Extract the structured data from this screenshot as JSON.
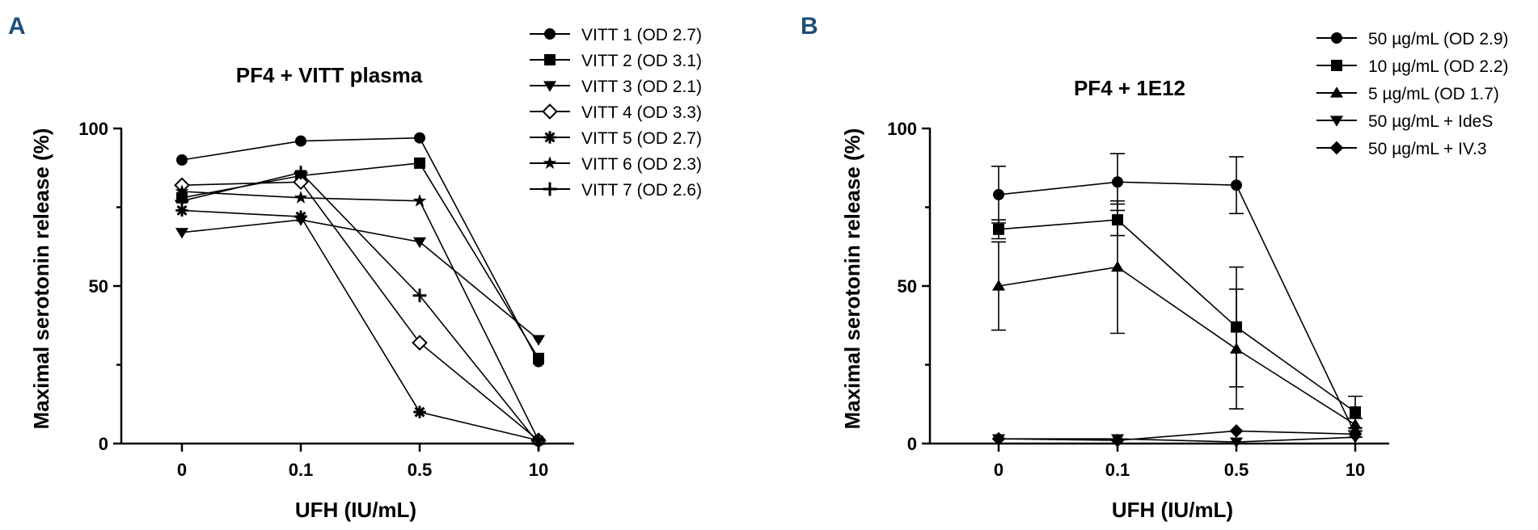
{
  "colors": {
    "ink": "#000000",
    "panel_letter": "#1f4e79",
    "background": "#ffffff"
  },
  "chart_data": [
    {
      "panel": "A",
      "type": "line",
      "title": "PF4 + VITT plasma",
      "xlabel": "UFH (IU/mL)",
      "ylabel": "Maximal serotonin release (%)",
      "categories": [
        "0",
        "0.1",
        "0.5",
        "10"
      ],
      "ylim": [
        0,
        100
      ],
      "yticks": [
        "0",
        "50",
        "100"
      ],
      "legend_position": "top-right",
      "series": [
        {
          "name": "VITT 1 (OD 2.7)",
          "marker": "circle",
          "values": [
            90,
            96,
            97,
            26
          ]
        },
        {
          "name": "VITT 2 (OD 3.1)",
          "marker": "square",
          "values": [
            78,
            85,
            89,
            27
          ]
        },
        {
          "name": "VITT 3 (OD 2.1)",
          "marker": "triangle-down",
          "values": [
            67,
            71,
            64,
            33
          ]
        },
        {
          "name": "VITT 4 (OD 3.3)",
          "marker": "diamond-open",
          "values": [
            82,
            83,
            32,
            1
          ]
        },
        {
          "name": "VITT 5 (OD 2.7)",
          "marker": "asterisk",
          "values": [
            74,
            72,
            10,
            1
          ]
        },
        {
          "name": "VITT 6 (OD 2.3)",
          "marker": "star",
          "values": [
            80,
            78,
            77,
            1
          ]
        },
        {
          "name": "VITT 7 (OD 2.6)",
          "marker": "plus",
          "values": [
            77,
            86,
            47,
            0
          ]
        }
      ]
    },
    {
      "panel": "B",
      "type": "line",
      "title": "PF4 + 1E12",
      "xlabel": "UFH (IU/mL)",
      "ylabel": "Maximal serotonin release (%)",
      "categories": [
        "0",
        "0.1",
        "0.5",
        "10"
      ],
      "ylim": [
        0,
        100
      ],
      "yticks": [
        "0",
        "50",
        "100"
      ],
      "legend_position": "top-right",
      "series": [
        {
          "name": "50 µg/mL (OD 2.9)",
          "marker": "circle",
          "values": [
            79,
            83,
            82,
            3
          ],
          "errors": [
            9,
            9,
            9,
            1
          ]
        },
        {
          "name": "10 µg/mL (OD 2.2)",
          "marker": "square",
          "values": [
            68,
            71,
            37,
            10
          ],
          "errors": [
            3,
            5,
            19,
            5
          ]
        },
        {
          "name": "5 µg/mL (OD 1.7)",
          "marker": "triangle-up",
          "values": [
            50,
            56,
            30,
            6
          ],
          "errors": [
            14,
            21,
            19,
            2
          ]
        },
        {
          "name": "50 µg/mL + IdeS",
          "marker": "triangle-down",
          "values": [
            1.5,
            1.5,
            0.5,
            2
          ]
        },
        {
          "name": "50 µg/mL + IV.3",
          "marker": "diamond",
          "values": [
            1.5,
            1,
            4,
            3
          ]
        }
      ]
    }
  ]
}
